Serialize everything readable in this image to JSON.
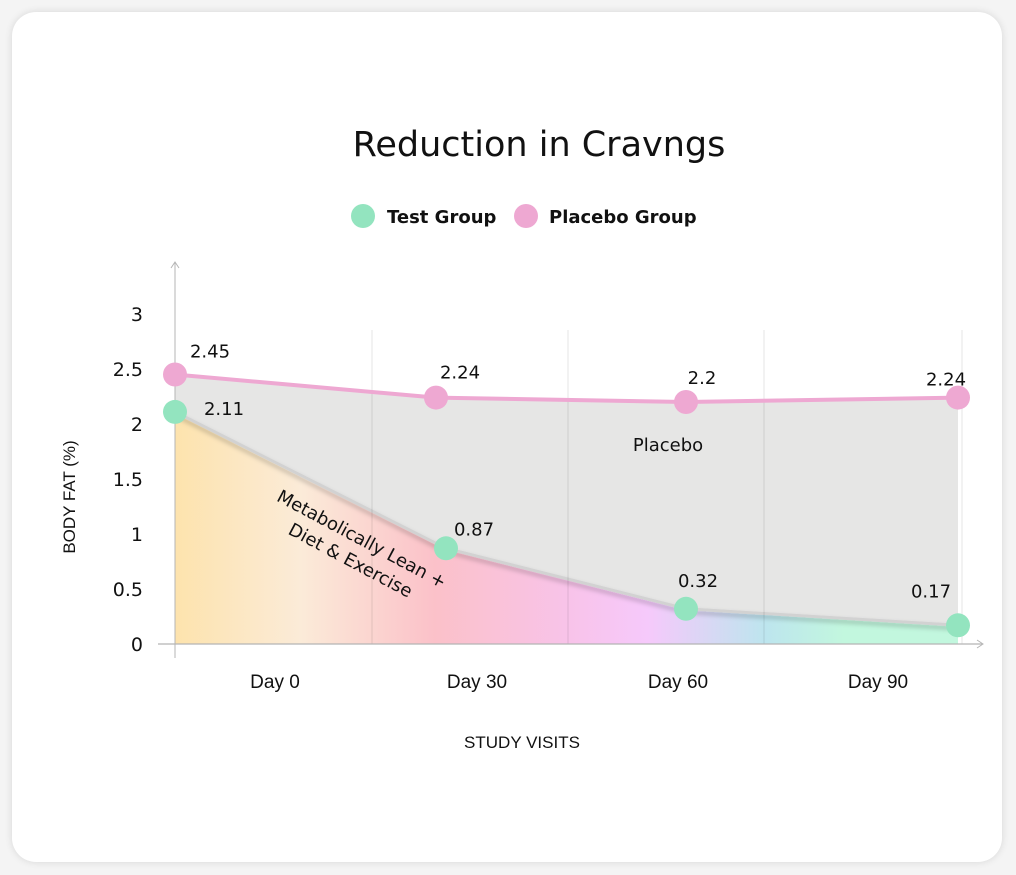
{
  "chart_data": {
    "type": "line",
    "title": "Reduction in Cravngs",
    "xlabel": "STUDY VISITS",
    "ylabel": "BODY FAT (%)",
    "categories": [
      "Day 0",
      "Day 30",
      "Day 60",
      "Day 90"
    ],
    "ylim": [
      0,
      3
    ],
    "yticks": [
      "0",
      "0.5",
      "1",
      "1.5",
      "2",
      "2.5",
      "3"
    ],
    "ytick_values": [
      0,
      0.5,
      1,
      1.5,
      2,
      2.5,
      3
    ],
    "grid": true,
    "legend_position": "top-center",
    "series": [
      {
        "name": "Test Group",
        "color": "#93e4bf",
        "values": [
          2.11,
          0.87,
          0.32,
          0.17
        ],
        "labels": [
          "2.11",
          "0.87",
          "0.32",
          "0.17"
        ]
      },
      {
        "name": "Placebo Group",
        "color": "#eea8d2",
        "values": [
          2.45,
          2.24,
          2.2,
          2.24
        ],
        "labels": [
          "2.45",
          "2.24",
          "2.2",
          "2.24"
        ]
      }
    ],
    "annotations": {
      "placebo_area": "Placebo",
      "test_area_line1": "Metabolically Lean +",
      "test_area_line2": "Diet & Exercise"
    },
    "colors": {
      "placebo_fill": "#e6e6e5",
      "gradient": [
        "#fde3ad",
        "#fbebd8",
        "#fbc1c9",
        "#f8c3e9",
        "#f6c9fb",
        "#bde5ee",
        "#c2f7de"
      ]
    }
  }
}
